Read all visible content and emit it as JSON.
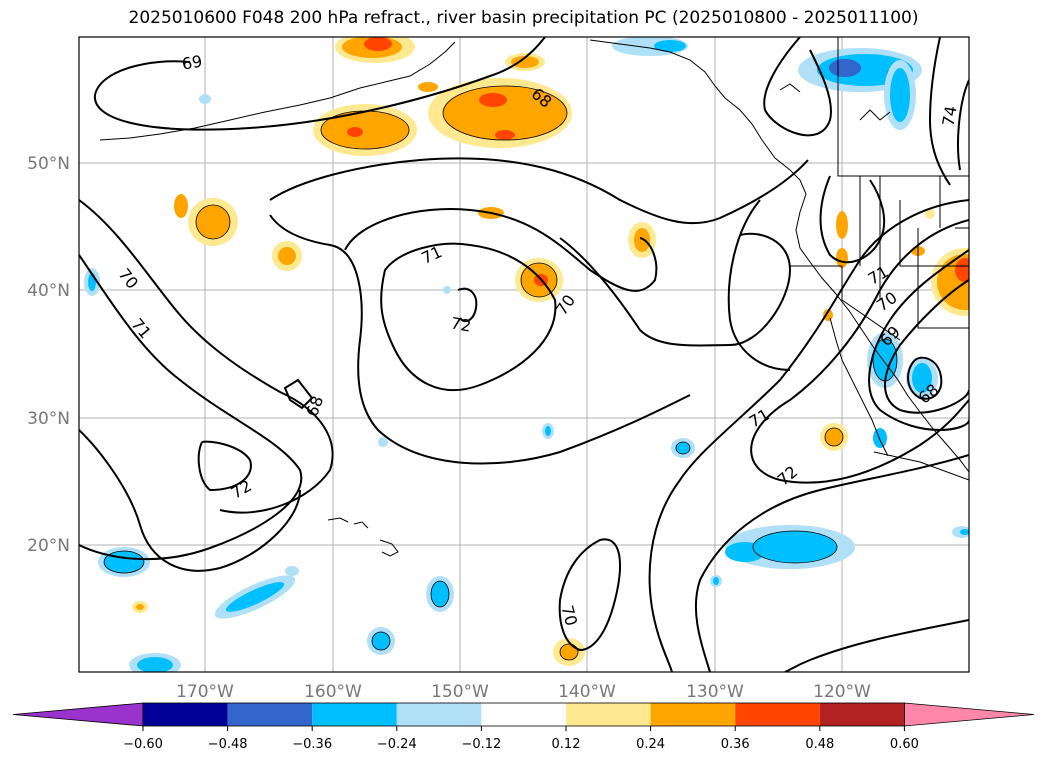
{
  "title": "2025010600 F048 200 hPa refract., river basin precipitation PC (2025010800 - 2025011100)",
  "lat_labels": [
    "50°N",
    "40°N",
    "30°N",
    "20°N"
  ],
  "lon_labels": [
    "170°W",
    "160°W",
    "150°W",
    "140°W",
    "130°W",
    "120°W"
  ],
  "contour_labels": [
    "69",
    "68",
    "74",
    "70",
    "71",
    "71",
    "72",
    "70",
    "68",
    "72",
    "71",
    "70",
    "69",
    "68",
    "71",
    "72",
    "70"
  ],
  "colorbar": {
    "colors": [
      "#9933cc",
      "#000099",
      "#3366cc",
      "#00bfff",
      "#b0e0f8",
      "#ffffff",
      "#ffe990",
      "#ffa500",
      "#ff4500",
      "#b22222",
      "#ff88aa"
    ],
    "tick_labels": [
      "−0.60",
      "−0.48",
      "−0.36",
      "−0.24",
      "−0.12",
      "0.12",
      "0.24",
      "0.36",
      "0.48",
      "0.60"
    ]
  }
}
